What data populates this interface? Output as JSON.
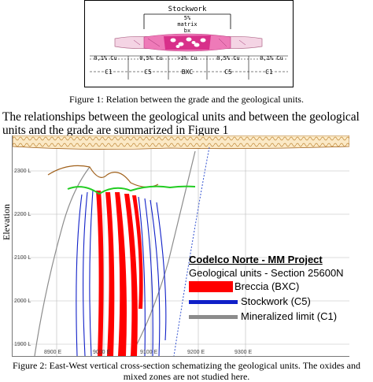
{
  "figure1": {
    "stockwork": "Stockwork",
    "matrix_lines": [
      "5%",
      "matrix",
      "bx"
    ],
    "grades": [
      "0,1% Cu",
      "0,5% Cu",
      ">3% Cu",
      "0,5% Cu",
      "0,1% Cu"
    ],
    "units": [
      "C1",
      "C5",
      "BXC",
      "C5",
      "C1"
    ],
    "caption": "Figure 1: Relation between the grade and the geological units."
  },
  "paragraph": "The relationships between the geological units and between the geological units and the grade are summarized in Figure 1",
  "figure2": {
    "y_axis_label": "Elevation",
    "y_ticks": [
      "2300 L",
      "2200 L",
      "2100 L",
      "2000 L",
      "1900 L"
    ],
    "x_ticks": [
      "8900 E",
      "9000 E",
      "9100 E",
      "9200 E",
      "9300 E"
    ],
    "legend_title": "Codelco Norte - MM Project",
    "legend_subtitle": "Geological units - Section 25600N",
    "legend_items": [
      {
        "label": "Breccia (BXC)",
        "color": "#ff0000"
      },
      {
        "label": "Stockwork (C5)",
        "color": "#1020c8"
      },
      {
        "label": "Mineralized limit (C1)",
        "color": "#8c8c8c"
      }
    ],
    "caption": "Figure 2: East-West vertical cross-section schematizing the geological units. The oxides and mixed zones are not studied here."
  },
  "colors": {
    "breccia": "#ff0000",
    "stockwork": "#1020c8",
    "limit": "#8c8c8c",
    "oxide_green": "#22cc22",
    "surface_brown": "#a0601a",
    "pink": "#e8489a"
  }
}
